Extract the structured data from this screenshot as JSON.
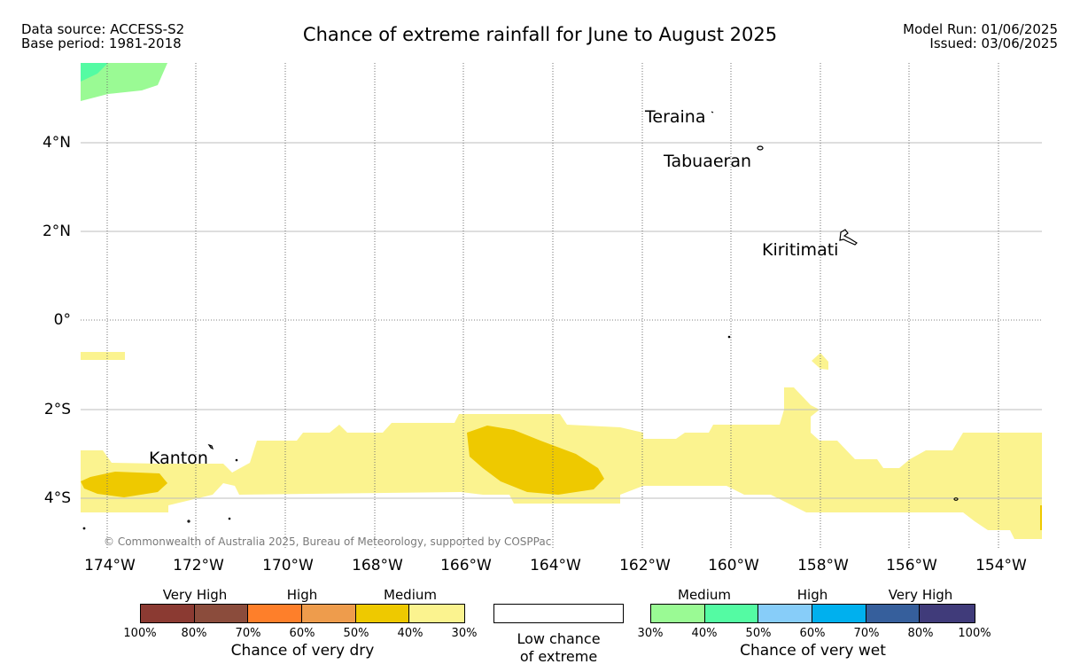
{
  "header": {
    "data_source": "Data source: ACCESS-S2",
    "base_period": "Base period: 1981-2018",
    "title": "Chance of extreme rainfall for June to August 2025",
    "model_run": "Model Run: 01/06/2025",
    "issued": "Issued: 03/06/2025"
  },
  "map": {
    "lat_labels": [
      "4°N",
      "2°N",
      "0°",
      "2°S",
      "4°S"
    ],
    "lon_labels": [
      "174°W",
      "172°W",
      "170°W",
      "168°W",
      "166°W",
      "164°W",
      "162°W",
      "160°W",
      "158°W",
      "156°W",
      "154°W"
    ],
    "places": [
      "Teraina",
      "Tabuaeran",
      "Kiritimati",
      "Kanton"
    ],
    "copyright": "© Commonwealth of Australia 2025, Bureau of Meteorology, supported by COSPPac",
    "colors": {
      "dry_30_40": "#fbf38f",
      "dry_40_50": "#eec900",
      "wet_30_40": "#9afa94",
      "wet_40_50": "#54fba3"
    }
  },
  "legend": {
    "dry": {
      "top_labels": [
        "Very High",
        "High",
        "Medium"
      ],
      "ticks": [
        "100%",
        "80%",
        "70%",
        "60%",
        "50%",
        "40%",
        "30%"
      ],
      "caption": "Chance of very dry",
      "colors": [
        "#8b3a32",
        "#8b4c3c",
        "#fe7f2a",
        "#ee9c4c",
        "#eec900",
        "#fbf38f"
      ]
    },
    "low": {
      "line1": "Low chance",
      "line2": "of extreme"
    },
    "wet": {
      "top_labels": [
        "Medium",
        "High",
        "Very High"
      ],
      "ticks": [
        "30%",
        "40%",
        "50%",
        "60%",
        "70%",
        "80%",
        "100%"
      ],
      "caption": "Chance of very wet",
      "colors": [
        "#9afa94",
        "#54fba3",
        "#87cdf9",
        "#00b0ee",
        "#365f9c",
        "#403b7a"
      ]
    }
  }
}
